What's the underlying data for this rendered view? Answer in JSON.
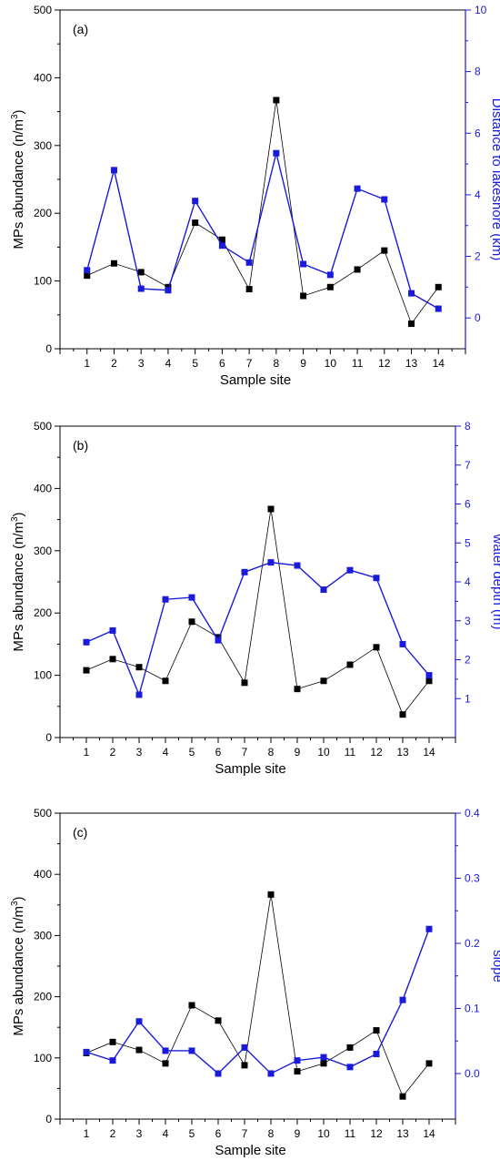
{
  "colors": {
    "primary": "#000000",
    "secondary": "#1a1adb"
  },
  "chart_data": [
    {
      "type": "line",
      "panel_label": "(a)",
      "xlabel": "Sample site",
      "x": [
        1,
        2,
        3,
        4,
        5,
        6,
        7,
        8,
        9,
        10,
        11,
        12,
        13,
        14
      ],
      "x_ticks": [
        "1",
        "2",
        "3",
        "4",
        "5",
        "6",
        "7",
        "8",
        "9",
        "10",
        "11",
        "12",
        "13",
        "14"
      ],
      "ylabel": "MPs abundance (n/m",
      "ylabel_sup": "3",
      "ylabel_close": ")",
      "ylim": [
        0,
        500
      ],
      "y_ticks": [
        "0",
        "100",
        "200",
        "300",
        "400",
        "500"
      ],
      "y2label": "Distance to lakeshore (km)",
      "y2lim": [
        -1,
        10
      ],
      "y2_ticks": [
        "0",
        "2",
        "4",
        "6",
        "8",
        "10"
      ],
      "series": [
        {
          "axis": "left",
          "values": [
            108,
            126,
            113,
            91,
            186,
            161,
            88,
            367,
            78,
            91,
            117,
            145,
            37,
            91
          ]
        },
        {
          "axis": "right",
          "values": [
            1.55,
            4.8,
            0.95,
            0.9,
            3.8,
            2.35,
            1.8,
            5.35,
            1.75,
            1.4,
            4.2,
            3.85,
            0.8,
            0.3
          ]
        }
      ]
    },
    {
      "type": "line",
      "panel_label": "(b)",
      "xlabel": "Sample site",
      "x": [
        1,
        2,
        3,
        4,
        5,
        6,
        7,
        8,
        9,
        10,
        11,
        12,
        13,
        14
      ],
      "x_ticks": [
        "1",
        "2",
        "3",
        "4",
        "5",
        "6",
        "7",
        "8",
        "9",
        "10",
        "11",
        "12",
        "13",
        "14"
      ],
      "ylabel": "MPs abundance (n/m",
      "ylabel_sup": "3",
      "ylabel_close": ")",
      "ylim": [
        0,
        500
      ],
      "y_ticks": [
        "0",
        "100",
        "200",
        "300",
        "400",
        "500"
      ],
      "y2label": "water depth (m)",
      "y2lim": [
        0,
        8
      ],
      "y2_ticks": [
        "1",
        "2",
        "3",
        "4",
        "5",
        "6",
        "7",
        "8"
      ],
      "series": [
        {
          "axis": "left",
          "values": [
            108,
            126,
            113,
            91,
            186,
            161,
            88,
            367,
            78,
            91,
            117,
            145,
            37,
            91
          ]
        },
        {
          "axis": "right",
          "values": [
            2.45,
            2.75,
            1.1,
            3.55,
            3.6,
            2.5,
            4.25,
            4.5,
            4.42,
            3.8,
            4.3,
            4.1,
            2.4,
            1.6
          ]
        }
      ]
    },
    {
      "type": "line",
      "panel_label": "(c)",
      "xlabel": "Sample site",
      "x": [
        1,
        2,
        3,
        4,
        5,
        6,
        7,
        8,
        9,
        10,
        11,
        12,
        13,
        14
      ],
      "x_ticks": [
        "1",
        "2",
        "3",
        "4",
        "5",
        "6",
        "7",
        "8",
        "9",
        "10",
        "11",
        "12",
        "13",
        "14"
      ],
      "ylabel": "MPs abundance (n/m",
      "ylabel_sup": "3",
      "ylabel_close": ")",
      "ylim": [
        0,
        500
      ],
      "y_ticks": [
        "0",
        "100",
        "200",
        "300",
        "400",
        "500"
      ],
      "y2label": "slope",
      "y2lim": [
        -0.07,
        0.4
      ],
      "y2_ticks": [
        "0.0",
        "0.1",
        "0.2",
        "0.3",
        "0.4"
      ],
      "y2_tick_values": [
        0,
        0.1,
        0.2,
        0.3,
        0.4
      ],
      "series": [
        {
          "axis": "left",
          "values": [
            108,
            126,
            113,
            91,
            186,
            161,
            88,
            367,
            78,
            91,
            117,
            145,
            37,
            91
          ]
        },
        {
          "axis": "right",
          "values": [
            0.033,
            0.02,
            0.08,
            0.035,
            0.035,
            0,
            0.04,
            0,
            0.02,
            0.025,
            0.01,
            0.03,
            0.113,
            0.222
          ]
        }
      ]
    }
  ]
}
